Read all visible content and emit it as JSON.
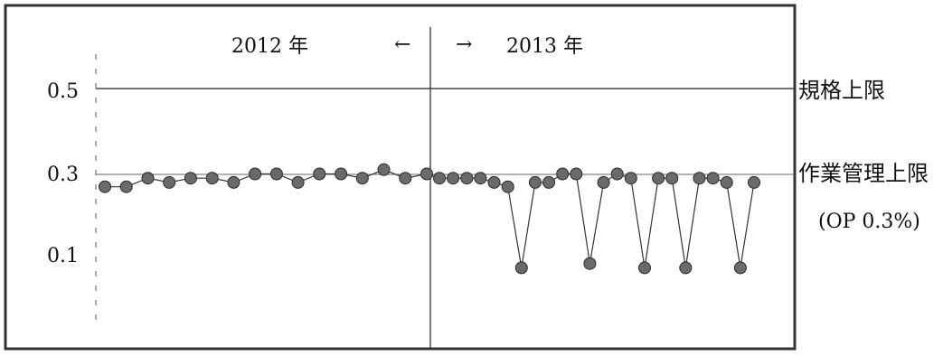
{
  "chart_data": {
    "type": "scatter",
    "title": "",
    "xlabel": "",
    "ylabel": "",
    "period_labels": {
      "left": "2012 年",
      "left_arrow": "←",
      "right_arrow": "→",
      "right": "2013 年"
    },
    "y_ticks": [
      "0.5",
      "0.3",
      "0.1"
    ],
    "ylim": [
      0.0,
      0.55
    ],
    "reference_lines": [
      {
        "name": "規格上限",
        "value": 0.5
      },
      {
        "name": "作業管理上限",
        "value": 0.29,
        "note": "(OP 0.3%)"
      }
    ],
    "series": [
      {
        "values": [
          0.27,
          0.27,
          0.29,
          0.28,
          0.29,
          0.29,
          0.28,
          0.3,
          0.3,
          0.28,
          0.3,
          0.3,
          0.29,
          0.31,
          0.29,
          0.3,
          0.29,
          0.29,
          0.29,
          0.29,
          0.28,
          0.27,
          0.08,
          0.28,
          0.28,
          0.3,
          0.3,
          0.09,
          0.28,
          0.3,
          0.29,
          0.08,
          0.29,
          0.29,
          0.08,
          0.29,
          0.29,
          0.28,
          0.08,
          0.28
        ]
      }
    ],
    "colors": {
      "points": "#6a6a6a",
      "line": "#333333",
      "frame": "#333333"
    }
  }
}
